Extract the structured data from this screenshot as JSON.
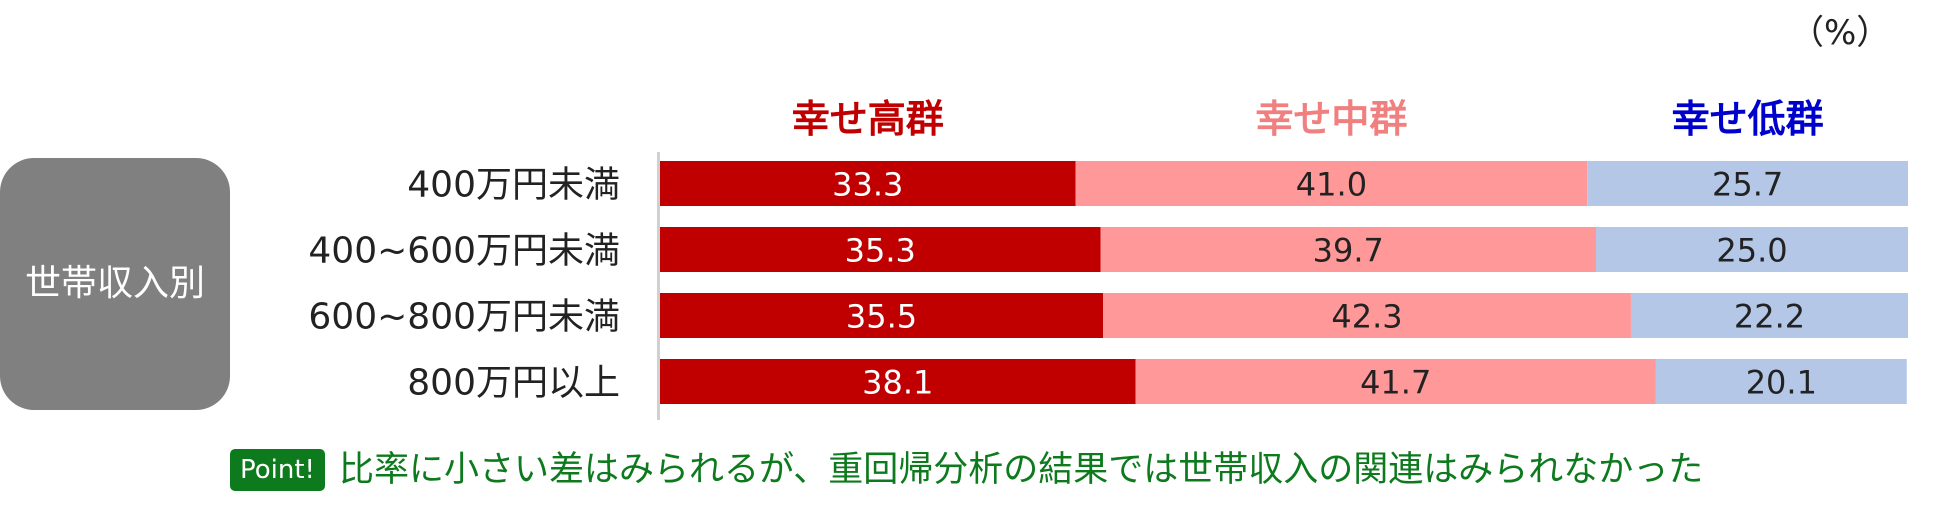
{
  "unit_label": "（%）",
  "group_label": "世帯収入別",
  "note": {
    "badge": "Point!",
    "text": "比率に小さい差はみられるが、重回帰分析の結果では世帯収入の関連はみられなかった"
  },
  "colors": {
    "high": "#c00000",
    "mid": "#ff9999",
    "low": "#b4c7e7",
    "legend_high": "#c00000",
    "legend_mid": "#f08080",
    "legend_low": "#0000cc"
  },
  "chart_data": {
    "type": "bar",
    "orientation": "horizontal",
    "stacked": true,
    "normalized": "100%",
    "categories": [
      "400万円未満",
      "400~600万円未満",
      "600~800万円未満",
      "800万円以上"
    ],
    "series": [
      {
        "name": "幸せ高群",
        "values": [
          33.3,
          35.3,
          35.5,
          38.1
        ]
      },
      {
        "name": "幸せ中群",
        "values": [
          41.0,
          39.7,
          42.3,
          41.7
        ]
      },
      {
        "name": "幸せ低群",
        "values": [
          25.7,
          25.0,
          22.2,
          20.1
        ]
      }
    ],
    "value_labels": [
      [
        "33.3",
        "41.0",
        "25.7"
      ],
      [
        "35.3",
        "39.7",
        "25.0"
      ],
      [
        "35.5",
        "42.3",
        "22.2"
      ],
      [
        "38.1",
        "41.7",
        "20.1"
      ]
    ],
    "xlim": [
      0,
      100
    ],
    "grid": false,
    "legend_position": "top"
  }
}
